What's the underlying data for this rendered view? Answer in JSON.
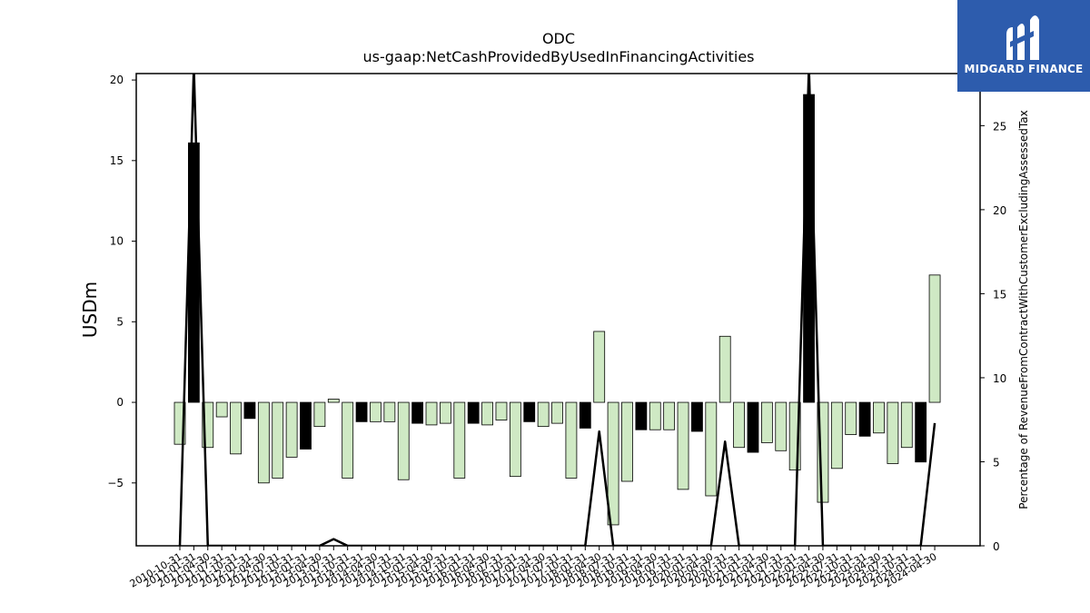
{
  "logo": {
    "text": "MIDGARD FINANCE",
    "bg_color": "#2d5cad"
  },
  "chart_data": {
    "type": "bar",
    "title": "ODC",
    "subtitle": "us-gaap:NetCashProvidedByUsedInFinancingActivities",
    "ylabel": "USDm",
    "y2label": "Percentage of RevenueFromContractWithCustomerExcludingAssessedTax",
    "ylim": [
      -8.9,
      20.4
    ],
    "y2lim": [
      0,
      28.1
    ],
    "yticks": [
      -5,
      0,
      5,
      10,
      15,
      20
    ],
    "y2ticks": [
      0,
      5,
      10,
      15,
      20,
      25
    ],
    "colors": {
      "positive_growth": "#000000",
      "other": "#cfe9c4",
      "edge": "#000000",
      "line": "#000000"
    },
    "categories": [
      "2010-10-31",
      "2011-01-31",
      "2011-04-30",
      "2011-07-31",
      "2011-10-31",
      "2012-01-31",
      "2012-04-30",
      "2012-07-31",
      "2012-10-31",
      "2013-01-31",
      "2013-04-30",
      "2013-07-31",
      "2013-10-31",
      "2014-01-31",
      "2014-04-30",
      "2014-07-31",
      "2014-10-31",
      "2015-01-31",
      "2015-04-30",
      "2015-07-31",
      "2015-10-31",
      "2016-01-31",
      "2016-04-30",
      "2016-07-31",
      "2016-10-31",
      "2017-01-31",
      "2017-04-30",
      "2017-07-31",
      "2017-10-31",
      "2018-01-31",
      "2018-04-30",
      "2018-07-31",
      "2018-10-31",
      "2019-01-31",
      "2019-04-30",
      "2019-07-31",
      "2019-10-31",
      "2020-01-31",
      "2020-04-30",
      "2020-07-31",
      "2020-10-31",
      "2021-01-31",
      "2021-04-30",
      "2021-07-31",
      "2021-10-31",
      "2022-01-31",
      "2022-04-30",
      "2022-07-31",
      "2022-10-31",
      "2023-01-31",
      "2023-04-30",
      "2023-07-31",
      "2023-10-31",
      "2024-01-31",
      "2024-04-30"
    ],
    "values": [
      -2.6,
      16.1,
      -2.8,
      -0.9,
      -3.2,
      -1.0,
      -5.0,
      -4.7,
      -3.4,
      -2.9,
      -1.5,
      0.2,
      -4.7,
      -1.2,
      -1.2,
      -1.2,
      -4.8,
      -1.3,
      -1.4,
      -1.3,
      -4.7,
      -1.3,
      -1.4,
      -1.1,
      -4.6,
      -1.2,
      -1.5,
      -1.3,
      -4.7,
      -1.6,
      4.4,
      -7.6,
      -4.9,
      -1.7,
      -1.7,
      -1.7,
      -5.4,
      -1.8,
      -5.8,
      4.1,
      -2.8,
      -3.1,
      -2.5,
      -3.0,
      -4.2,
      19.1,
      -6.2,
      -4.1,
      -2.0,
      -2.1,
      -1.9,
      -3.8,
      -2.8,
      -3.7,
      7.9
    ],
    "highlight": [
      false,
      true,
      false,
      false,
      false,
      true,
      false,
      false,
      false,
      true,
      false,
      false,
      false,
      true,
      false,
      false,
      false,
      true,
      false,
      false,
      false,
      true,
      false,
      false,
      false,
      true,
      false,
      false,
      false,
      true,
      false,
      false,
      false,
      true,
      false,
      false,
      false,
      true,
      false,
      false,
      false,
      true,
      false,
      false,
      false,
      true,
      false,
      false,
      false,
      true,
      false,
      false,
      false,
      true,
      false
    ],
    "line_values": [
      0,
      28.5,
      0,
      0,
      0,
      0,
      0,
      0,
      0,
      0,
      0,
      0.4,
      0,
      0,
      0,
      0,
      0,
      0,
      0,
      0,
      0,
      0,
      0,
      0,
      0,
      0,
      0,
      0,
      0,
      0,
      6.8,
      0,
      0,
      0,
      0,
      0,
      0,
      0,
      0,
      6.2,
      0,
      0,
      0,
      0,
      0,
      28.5,
      0,
      0,
      0,
      0,
      0,
      0,
      0,
      0,
      7.3
    ]
  }
}
